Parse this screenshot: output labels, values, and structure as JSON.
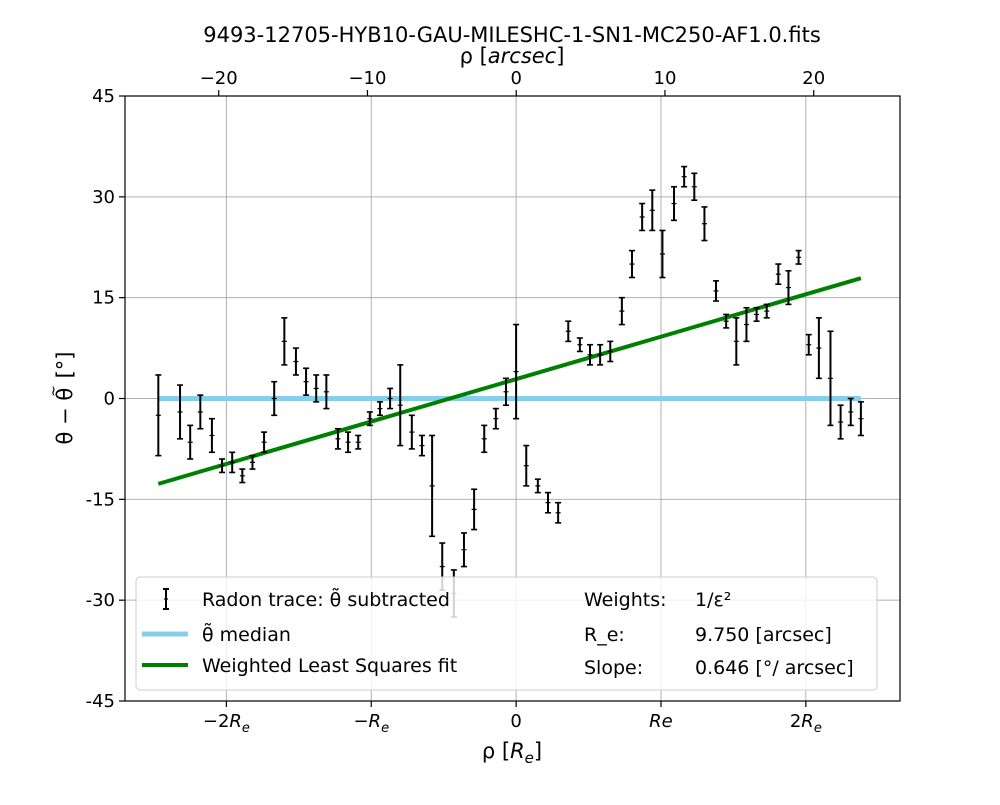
{
  "chart_data": {
    "type": "scatter",
    "title": "9493-12705-HYB10-GAU-MILESHC-1-SN1-MC250-AF1.0.fits",
    "xlabel": "ρ [R_e]",
    "x2label": "ρ [arcsec]",
    "ylabel": "θ − θ̃ [°]",
    "xlim": [
      -2.7,
      2.65
    ],
    "ylim": [
      -45,
      45
    ],
    "x2lim": [
      -26.3,
      25.8
    ],
    "yticks": [
      45,
      30,
      15,
      0,
      -15,
      -30,
      -45
    ],
    "ytick_labels": [
      "45",
      "30",
      "15",
      "0",
      "-15",
      "-30",
      "-45"
    ],
    "xticks": [
      -2,
      -1,
      0,
      1,
      2
    ],
    "xtick_labels": [
      "−2R_e",
      "−R_e",
      "0",
      "Re",
      "2R_e"
    ],
    "x2ticks": [
      -20,
      -10,
      0,
      10,
      20
    ],
    "x2tick_labels": [
      "−20",
      "−10",
      "0",
      "10",
      "20"
    ],
    "grid": true,
    "legend_position": "lower center",
    "series": [
      {
        "name": "Radon trace: θ̃ subtracted",
        "kind": "errorbar",
        "color": "#000000",
        "points": [
          {
            "x": -2.47,
            "y": -2.5,
            "err": 6.0
          },
          {
            "x": -2.32,
            "y": -2.0,
            "err": 4.0
          },
          {
            "x": -2.25,
            "y": -6.5,
            "err": 2.5
          },
          {
            "x": -2.18,
            "y": -2.0,
            "err": 2.5
          },
          {
            "x": -2.1,
            "y": -5.5,
            "err": 2.5
          },
          {
            "x": -2.03,
            "y": -10.0,
            "err": 1.0
          },
          {
            "x": -1.96,
            "y": -9.5,
            "err": 1.5
          },
          {
            "x": -1.89,
            "y": -11.5,
            "err": 1.0
          },
          {
            "x": -1.82,
            "y": -9.5,
            "err": 1.0
          },
          {
            "x": -1.74,
            "y": -6.5,
            "err": 1.5
          },
          {
            "x": -1.67,
            "y": 0.0,
            "err": 2.5
          },
          {
            "x": -1.6,
            "y": 8.5,
            "err": 3.5
          },
          {
            "x": -1.52,
            "y": 5.5,
            "err": 2.0
          },
          {
            "x": -1.45,
            "y": 2.5,
            "err": 2.0
          },
          {
            "x": -1.38,
            "y": 1.5,
            "err": 2.0
          },
          {
            "x": -1.31,
            "y": 1.0,
            "err": 2.5
          },
          {
            "x": -1.23,
            "y": -6.0,
            "err": 1.5
          },
          {
            "x": -1.16,
            "y": -6.5,
            "err": 1.5
          },
          {
            "x": -1.09,
            "y": -6.5,
            "err": 1.0
          },
          {
            "x": -1.01,
            "y": -3.0,
            "err": 1.0
          },
          {
            "x": -0.94,
            "y": -1.5,
            "err": 1.0
          },
          {
            "x": -0.87,
            "y": 0.0,
            "err": 1.5
          },
          {
            "x": -0.8,
            "y": -1.0,
            "err": 6.0
          },
          {
            "x": -0.72,
            "y": -5.0,
            "err": 2.5
          },
          {
            "x": -0.65,
            "y": -7.0,
            "err": 1.5
          },
          {
            "x": -0.58,
            "y": -13.0,
            "err": 7.5
          },
          {
            "x": -0.51,
            "y": -25.0,
            "err": 3.5
          },
          {
            "x": -0.43,
            "y": -29.0,
            "err": 3.5
          },
          {
            "x": -0.36,
            "y": -22.5,
            "err": 2.5
          },
          {
            "x": -0.29,
            "y": -16.5,
            "err": 3.0
          },
          {
            "x": -0.22,
            "y": -6.0,
            "err": 2.0
          },
          {
            "x": -0.14,
            "y": -3.0,
            "err": 1.5
          },
          {
            "x": -0.07,
            "y": 1.0,
            "err": 2.0
          },
          {
            "x": 0.0,
            "y": 4.0,
            "err": 7.0
          },
          {
            "x": 0.07,
            "y": -10.0,
            "err": 3.0
          },
          {
            "x": 0.15,
            "y": -13.0,
            "err": 1.0
          },
          {
            "x": 0.22,
            "y": -15.5,
            "err": 1.5
          },
          {
            "x": 0.29,
            "y": -17.0,
            "err": 1.5
          },
          {
            "x": 0.36,
            "y": 10.0,
            "err": 1.5
          },
          {
            "x": 0.44,
            "y": 8.0,
            "err": 1.0
          },
          {
            "x": 0.51,
            "y": 6.5,
            "err": 1.5
          },
          {
            "x": 0.58,
            "y": 6.5,
            "err": 1.5
          },
          {
            "x": 0.65,
            "y": 7.0,
            "err": 1.5
          },
          {
            "x": 0.73,
            "y": 13.0,
            "err": 2.0
          },
          {
            "x": 0.8,
            "y": 20.0,
            "err": 2.0
          },
          {
            "x": 0.87,
            "y": 27.0,
            "err": 2.0
          },
          {
            "x": 0.94,
            "y": 28.0,
            "err": 3.0
          },
          {
            "x": 1.01,
            "y": 21.5,
            "err": 3.5
          },
          {
            "x": 1.09,
            "y": 29.0,
            "err": 2.5
          },
          {
            "x": 1.16,
            "y": 33.0,
            "err": 1.5
          },
          {
            "x": 1.23,
            "y": 31.5,
            "err": 2.0
          },
          {
            "x": 1.3,
            "y": 26.0,
            "err": 2.5
          },
          {
            "x": 1.38,
            "y": 16.0,
            "err": 1.5
          },
          {
            "x": 1.45,
            "y": 11.5,
            "err": 1.0
          },
          {
            "x": 1.52,
            "y": 8.5,
            "err": 3.5
          },
          {
            "x": 1.59,
            "y": 11.0,
            "err": 2.5
          },
          {
            "x": 1.66,
            "y": 12.5,
            "err": 1.0
          },
          {
            "x": 1.73,
            "y": 13.0,
            "err": 1.0
          },
          {
            "x": 1.81,
            "y": 18.5,
            "err": 1.5
          },
          {
            "x": 1.88,
            "y": 16.5,
            "err": 2.5
          },
          {
            "x": 1.95,
            "y": 21.0,
            "err": 1.0
          },
          {
            "x": 2.02,
            "y": 8.0,
            "err": 1.5
          },
          {
            "x": 2.09,
            "y": 7.5,
            "err": 4.5
          },
          {
            "x": 2.17,
            "y": 3.0,
            "err": 7.0
          },
          {
            "x": 2.24,
            "y": -3.5,
            "err": 2.5
          },
          {
            "x": 2.31,
            "y": -2.0,
            "err": 2.0
          },
          {
            "x": 2.38,
            "y": -3.0,
            "err": 2.5
          }
        ]
      },
      {
        "name": "θ̃ median",
        "kind": "line",
        "color": "#87ceeb",
        "x": [
          -2.47,
          2.38
        ],
        "y": [
          0,
          0
        ]
      },
      {
        "name": "Weighted Least Squares fit",
        "kind": "line",
        "color": "#008000",
        "x": [
          -2.47,
          2.38
        ],
        "y": [
          -12.7,
          17.9
        ]
      }
    ],
    "legend_info": [
      {
        "label": "Weights:",
        "value": "1/ε²"
      },
      {
        "label": "R_e:",
        "value": "9.750 [arcsec]"
      },
      {
        "label": "Slope:",
        "value": "0.646 [°/ arcsec]"
      }
    ]
  }
}
